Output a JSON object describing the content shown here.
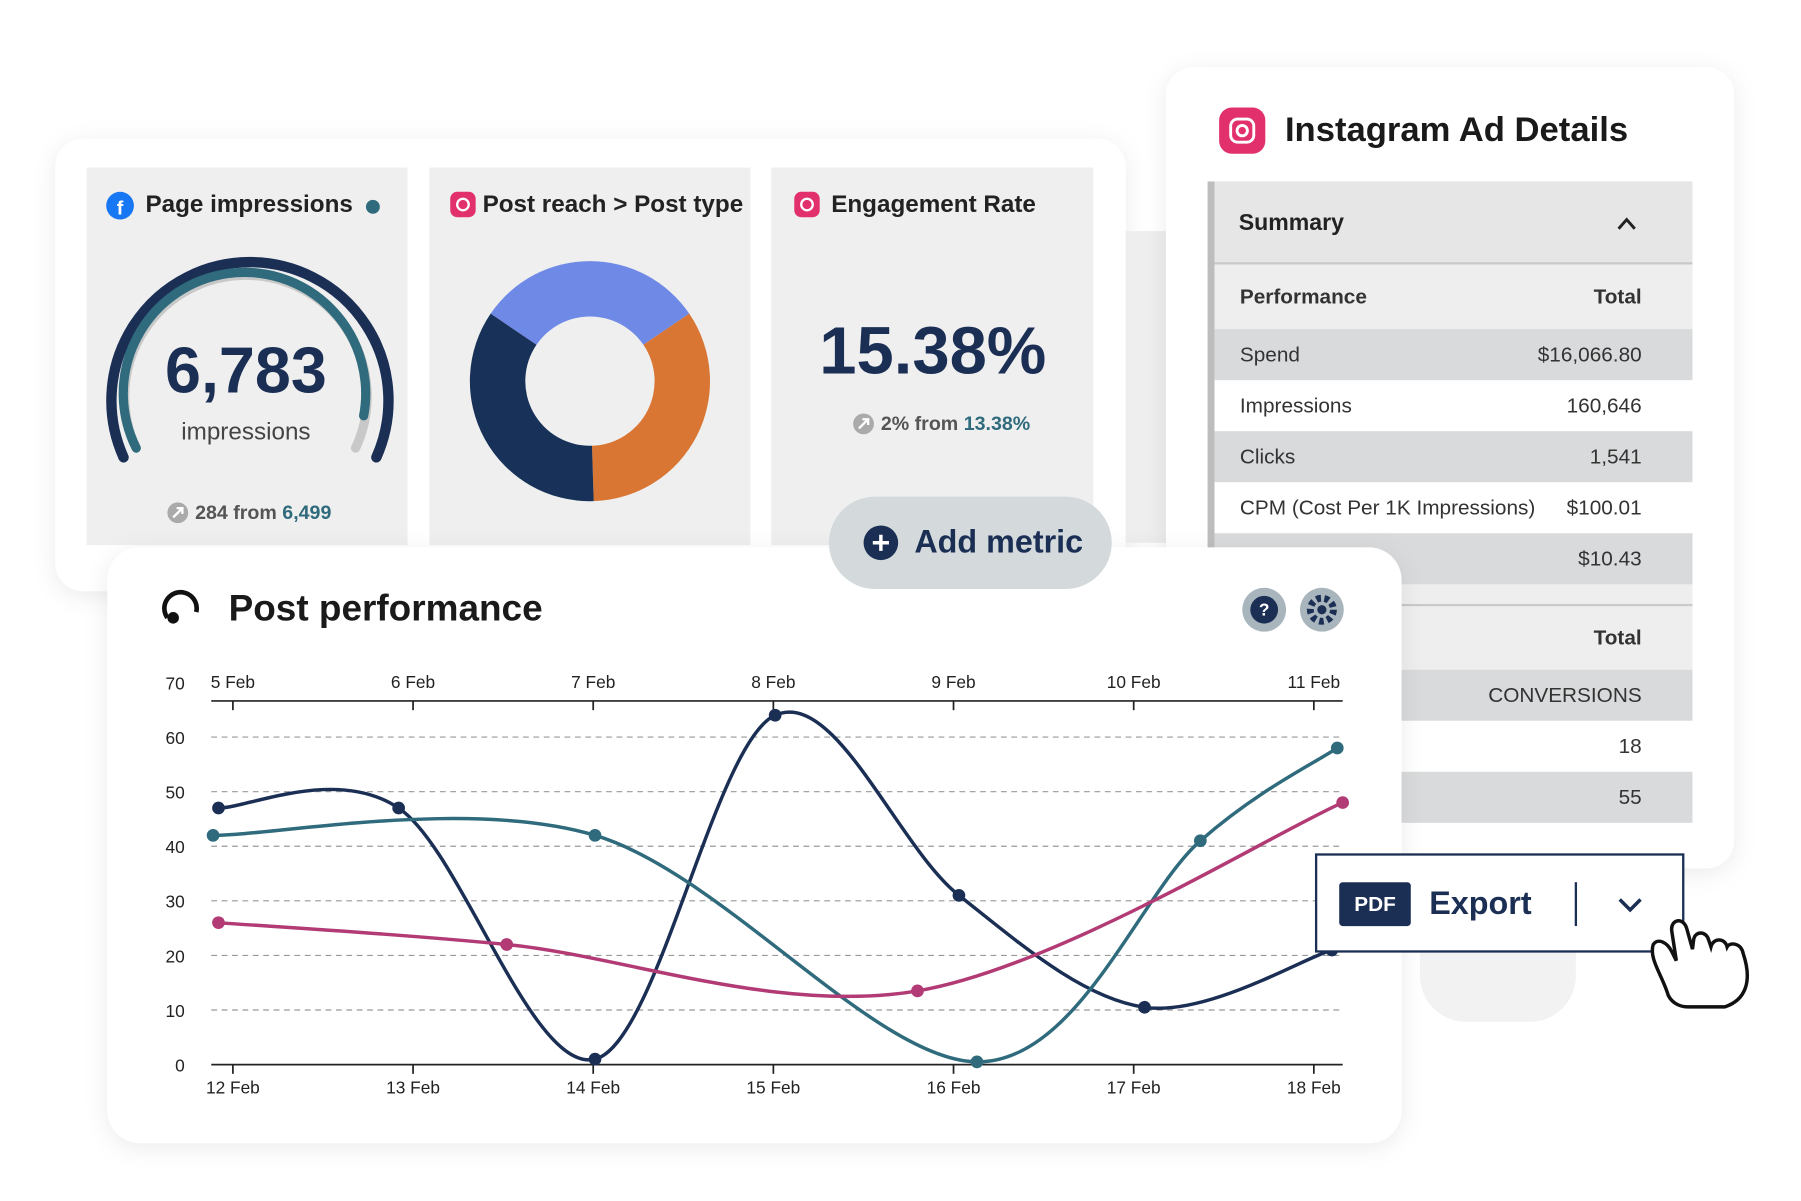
{
  "cards": [
    {
      "title": "Page impressions",
      "value": "6,783",
      "unit": "impressions",
      "change": "284",
      "from": "from",
      "previous": "6,499"
    },
    {
      "title": "Post reach > Post type"
    },
    {
      "title": "Engagement Rate",
      "value": "15.38%",
      "change": "2%",
      "from": "from",
      "previous": "13.38%"
    }
  ],
  "add_metric": "Add metric",
  "ad_details": {
    "title": "Instagram Ad Details",
    "section": "Summary",
    "table": {
      "header": [
        "Performance",
        "Total"
      ],
      "rows": [
        [
          "Spend",
          "$16,066.80"
        ],
        [
          "Impressions",
          "160,646"
        ],
        [
          "Clicks",
          "1,541"
        ],
        [
          "CPM (Cost Per 1K Impressions)",
          "$100.01"
        ],
        [
          "$10.43"
        ]
      ],
      "header2": [
        "Total"
      ],
      "rows2": [
        [
          "CONVERSIONS"
        ],
        [
          "18"
        ],
        [
          "55"
        ]
      ]
    }
  },
  "export": {
    "format": "PDF",
    "label": "Export"
  },
  "chart_data": [
    {
      "type": "pie",
      "donut": true,
      "values": [
        31,
        34,
        35
      ],
      "colors": [
        "#6f8ae6",
        "#d97634",
        "#173158"
      ]
    },
    {
      "type": "line",
      "title": "Post performance",
      "ylim": [
        0,
        70
      ],
      "yticks": [
        0,
        10,
        20,
        30,
        40,
        50,
        60,
        70
      ],
      "xlim": [
        11.88,
        18.16
      ],
      "xticks": [
        {
          "value": 12,
          "label": "12 Feb"
        },
        {
          "value": 13,
          "label": "13 Feb"
        },
        {
          "value": 14,
          "label": "14 Feb"
        },
        {
          "value": 15,
          "label": "15 Feb"
        },
        {
          "value": 16,
          "label": "16 Feb"
        },
        {
          "value": 17,
          "label": "17 Feb"
        },
        {
          "value": 18,
          "label": "18 Feb"
        }
      ],
      "x2lim": [
        4.88,
        11.16
      ],
      "x2ticks": [
        {
          "value": 5,
          "label": "5 Feb"
        },
        {
          "value": 6,
          "label": "6 Feb"
        },
        {
          "value": 7,
          "label": "7 Feb"
        },
        {
          "value": 8,
          "label": "8 Feb"
        },
        {
          "value": 9,
          "label": "9 Feb"
        },
        {
          "value": 10,
          "label": "10 Feb"
        },
        {
          "value": 11,
          "label": "11 Feb"
        }
      ],
      "grid": true,
      "series": [
        {
          "color": "#1b2f55",
          "x": [
            11.92,
            12.92,
            14.01,
            15.01,
            16.03,
            17.06,
            18.1
          ],
          "values": [
            47,
            47,
            1,
            64,
            31,
            10.5,
            21
          ]
        },
        {
          "color": "#2f6b7c",
          "x": [
            11.89,
            14.01,
            16.13,
            17.37,
            18.13
          ],
          "values": [
            42,
            42,
            0.5,
            41,
            58
          ]
        },
        {
          "color": "#b23a75",
          "x": [
            11.92,
            13.52,
            15.8,
            18.16
          ],
          "values": [
            26,
            22,
            13.5,
            48
          ]
        }
      ]
    }
  ]
}
